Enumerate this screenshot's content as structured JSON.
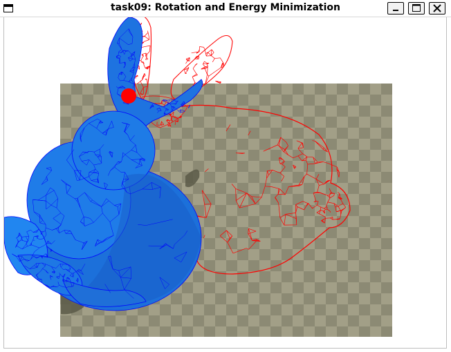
{
  "window": {
    "title": "task09: Rotation and Energy Minimization"
  },
  "titlebar_buttons": {
    "minimize_icon": "minimize-icon",
    "maximize_icon": "maximize-icon",
    "close_icon": "close-icon"
  },
  "scene": {
    "colors": {
      "background": "#ffffff",
      "floor_dark": "#8c8a74",
      "floor_light": "#a29f87",
      "shadow": "#5b5a48",
      "solid_mesh_fill": "#1f7be8",
      "solid_mesh_edges": "#0000ff",
      "wire_mesh": "#ff0000",
      "handle_point": "#ff0000"
    },
    "objects": [
      "checker-floor",
      "solid-blue-bunny",
      "red-wireframe-bunny",
      "drag-handle-point"
    ]
  }
}
